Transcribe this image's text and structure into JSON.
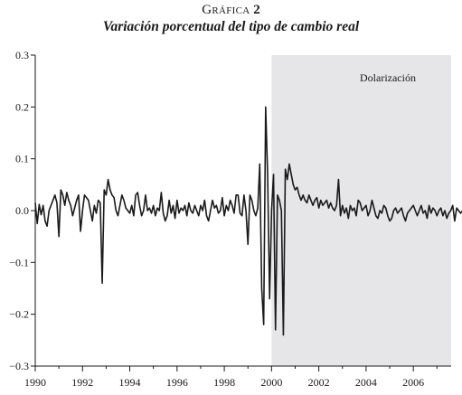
{
  "chart_data": {
    "type": "line",
    "title_prefix": "Gráfica",
    "title_number": "2",
    "subtitle": "Variación porcentual del tipo de cambio real",
    "xlabel": "",
    "ylabel": "",
    "xlim": [
      1990,
      2007.6
    ],
    "ylim": [
      -0.3,
      0.3
    ],
    "x_ticks": [
      1990,
      1992,
      1994,
      1996,
      1998,
      2000,
      2002,
      2004,
      2006
    ],
    "x_tick_labels": [
      "1990",
      "1992",
      "1994",
      "1996",
      "1998",
      "2000",
      "2002",
      "2004",
      "2006"
    ],
    "y_ticks": [
      -0.3,
      -0.2,
      -0.1,
      0.0,
      0.1,
      0.2,
      0.3
    ],
    "y_tick_labels": [
      "−0.3",
      "−0.2",
      "−0.1",
      "0.0",
      "0.1",
      "0.2",
      "0.3"
    ],
    "grid": false,
    "legend": "none",
    "shaded_region": {
      "x_start": 2000.0,
      "x_end": 2007.6,
      "label": "Dolarización",
      "color": "#e6e6e8"
    },
    "line_color": "#1a1a1a",
    "series": [
      {
        "start": 1990.0,
        "step_months": 1,
        "values": [
          0.015,
          -0.025,
          0.012,
          -0.008,
          0.01,
          -0.02,
          -0.03,
          0.0,
          0.01,
          0.02,
          0.03,
          0.015,
          -0.05,
          0.04,
          0.03,
          0.01,
          0.035,
          0.02,
          0.01,
          -0.01,
          0.005,
          0.02,
          0.03,
          -0.04,
          0.0,
          0.03,
          0.025,
          0.02,
          0.0,
          -0.02,
          0.01,
          -0.005,
          0.02,
          0.015,
          -0.14,
          0.04,
          0.03,
          0.06,
          0.04,
          0.03,
          0.025,
          0.0,
          -0.01,
          0.01,
          0.03,
          0.02,
          0.005,
          0.0,
          -0.005,
          0.01,
          -0.01,
          0.03,
          0.035,
          0.01,
          -0.01,
          0.0,
          0.03,
          0.0,
          0.005,
          -0.005,
          0.01,
          -0.01,
          0.005,
          0.0,
          0.035,
          -0.005,
          -0.02,
          -0.01,
          0.02,
          -0.005,
          0.01,
          -0.015,
          0.02,
          -0.005,
          0.005,
          0.0,
          0.01,
          -0.01,
          0.015,
          0.0,
          -0.005,
          0.01,
          0.0,
          -0.01,
          0.01,
          0.0,
          0.02,
          -0.01,
          -0.02,
          0.0,
          0.02,
          0.005,
          0.01,
          -0.005,
          0.0,
          0.025,
          -0.01,
          0.01,
          0.0,
          0.02,
          0.01,
          -0.005,
          0.03,
          0.03,
          -0.005,
          -0.01,
          0.03,
          0.0,
          -0.065,
          0.03,
          0.02,
          0.0,
          -0.01,
          0.005,
          0.09,
          -0.15,
          -0.22,
          0.2,
          0.07,
          -0.17,
          0.0,
          0.07,
          -0.23,
          0.03,
          0.02,
          0.0,
          -0.24,
          0.08,
          0.06,
          0.09,
          0.07,
          0.05,
          0.04,
          0.045,
          0.03,
          0.02,
          0.03,
          0.02,
          0.015,
          0.03,
          0.02,
          0.01,
          0.02,
          0.025,
          0.005,
          0.02,
          0.01,
          0.015,
          0.02,
          0.005,
          0.015,
          0.005,
          0.0,
          0.01,
          0.06,
          -0.01,
          0.01,
          -0.005,
          0.005,
          -0.015,
          0.01,
          0.0,
          0.005,
          -0.01,
          0.02,
          0.015,
          0.0,
          0.005,
          0.01,
          -0.01,
          0.0,
          0.02,
          0.005,
          -0.01,
          -0.015,
          0.0,
          -0.005,
          0.01,
          0.005,
          -0.01,
          -0.02,
          -0.015,
          0.0,
          0.005,
          -0.005,
          0.0,
          0.005,
          -0.01,
          -0.02,
          -0.005,
          0.0,
          0.005,
          0.01,
          0.0,
          -0.01,
          0.0,
          0.01,
          -0.005,
          0.0,
          -0.015,
          0.01,
          -0.005,
          0.005,
          0.0,
          -0.01,
          0.0,
          0.005,
          -0.01,
          0.0,
          -0.015,
          -0.005,
          0.0,
          0.01,
          -0.02,
          0.005,
          0.0,
          -0.005,
          0.0,
          0.005,
          -0.01,
          0.015,
          -0.015,
          -0.02,
          -0.005,
          0.005
        ]
      }
    ]
  }
}
